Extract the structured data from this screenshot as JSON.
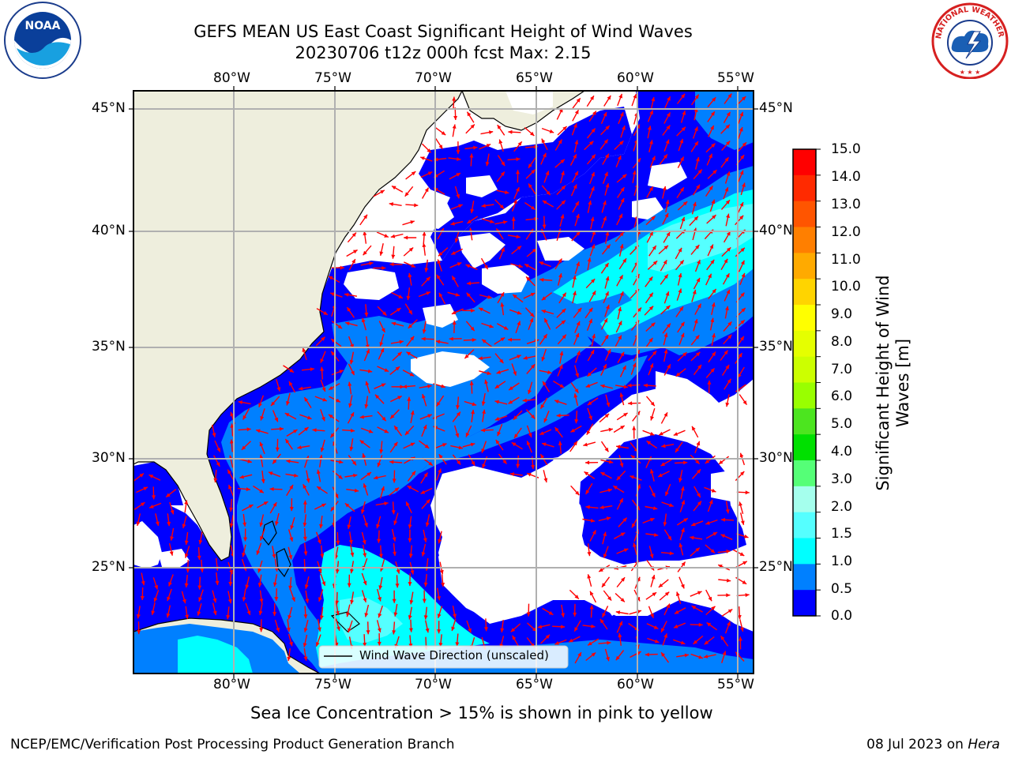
{
  "title": {
    "line1": "GEFS MEAN US East Coast Significant Height of Wind Waves",
    "line2": "20230706 t12z 000h fcst   Max: 2.15"
  },
  "map": {
    "lon_ticks": [
      "80°W",
      "75°W",
      "70°W",
      "65°W",
      "60°W",
      "55°W"
    ],
    "lat_ticks": [
      "45°N",
      "40°N",
      "35°N",
      "30°N",
      "25°N"
    ],
    "legend_label": "Wind Wave Direction (unscaled)",
    "land_color": "#eeeedd",
    "arrow_color": "#ff0000"
  },
  "colorbar": {
    "label_line1": "Significant Height of Wind",
    "label_line2": "Waves [m]",
    "ticks": [
      "15.0",
      "14.0",
      "13.0",
      "12.0",
      "11.0",
      "10.0",
      "9.0",
      "8.0",
      "7.0",
      "6.0",
      "5.0",
      "4.0",
      "3.0",
      "2.0",
      "1.5",
      "1.0",
      "0.5",
      "0.0"
    ],
    "colors_top_to_bottom": [
      "#ff0000",
      "#ff2a00",
      "#ff5500",
      "#ff7f00",
      "#ffaa00",
      "#ffd400",
      "#ffff00",
      "#e5ff00",
      "#ccff00",
      "#99ff00",
      "#4ce51f",
      "#00e000",
      "#55ff77",
      "#a5ffed",
      "#55ffff",
      "#00ffff",
      "#0080ff",
      "#0000ff"
    ]
  },
  "note": "Sea Ice Concentration > 15% is shown in pink to yellow",
  "footer": {
    "left": "NCEP/EMC/Verification Post Processing Product Generation Branch",
    "date": "08 Jul 2023 on ",
    "host": "Hera"
  },
  "logos": {
    "noaa_text": "NOAA",
    "nws_text": "NATIONAL WEATHER SERVICE"
  }
}
